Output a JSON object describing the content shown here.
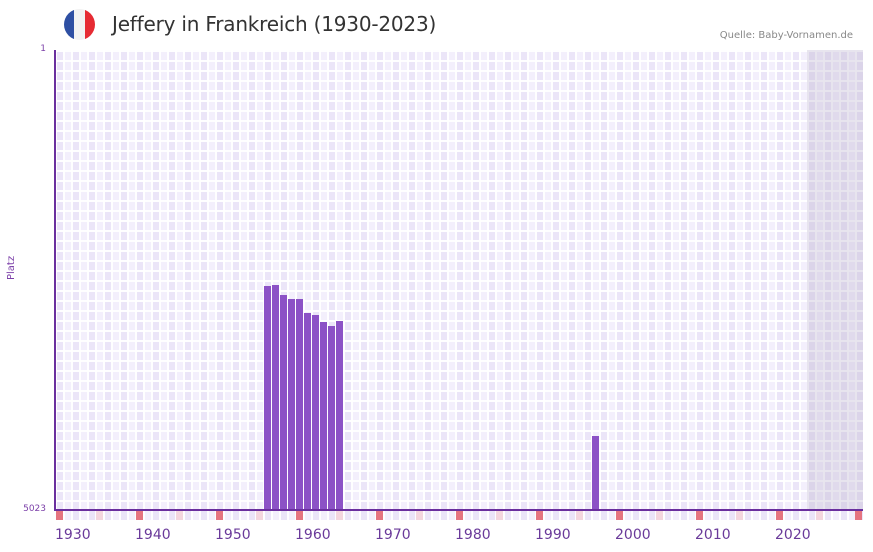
{
  "header": {
    "title": "Jeffery in Frankreich (1930-2023)",
    "source": "Quelle: Baby-Vornamen.de",
    "flag_colors": [
      "#2e4fa3",
      "#f2f2f2",
      "#e62b33"
    ]
  },
  "colors": {
    "bar": "#8c52c6",
    "axis": "#6a2f9e",
    "decade_marker": "#e57480",
    "half_decade_marker": "#f4d6de"
  },
  "chart_data": {
    "type": "bar",
    "title": "Jeffery in Frankreich (1930-2023)",
    "xlabel": "",
    "ylabel": "Platz",
    "y_inverted": true,
    "ylim": [
      1,
      5023
    ],
    "xlim": [
      1930,
      2030
    ],
    "x_tick_labels": [
      "1930",
      "1940",
      "1950",
      "1960",
      "1970",
      "1980",
      "1990",
      "2000",
      "2010",
      "2020"
    ],
    "y_tick_labels": [
      "1",
      "5023"
    ],
    "grid": true,
    "legend": null,
    "categories": [
      1956,
      1957,
      1958,
      1959,
      1960,
      1961,
      1962,
      1963,
      1964,
      1965,
      1997
    ],
    "values": [
      2578,
      2567,
      2676,
      2720,
      2720,
      2872,
      2894,
      2971,
      3014,
      2960,
      4215
    ],
    "shaded_region_start_year": 2024
  },
  "axis": {
    "ylabel": "Platz",
    "y_top": "1",
    "y_bottom": "5023"
  }
}
